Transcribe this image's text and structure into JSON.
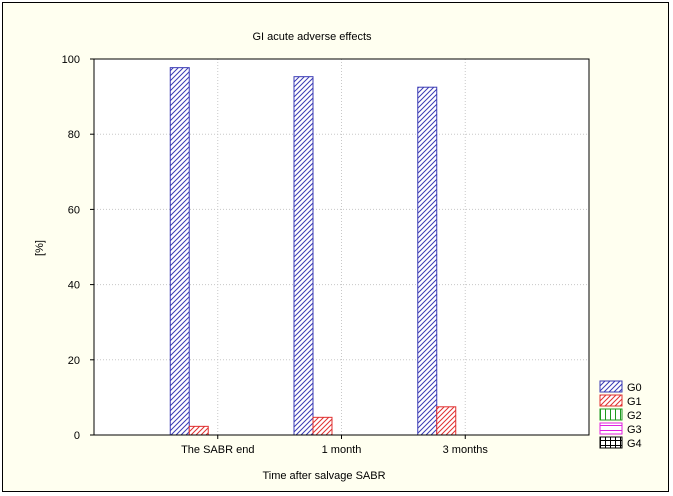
{
  "chart_data": {
    "type": "bar",
    "title": "GI acute adverse effects",
    "xlabel": "Time after salvage SABR",
    "ylabel": "[%]",
    "categories": [
      "The SABR end",
      "1 month",
      "3 months"
    ],
    "ylim": [
      0,
      100
    ],
    "yticks": [
      "0",
      "20",
      "40",
      "60",
      "80",
      "100"
    ],
    "grid": true,
    "legend_position": "bottom-right",
    "series": [
      {
        "name": "G0",
        "values": [
          97.7,
          95.3,
          92.5
        ],
        "color": "#3b3bb5",
        "pattern": "diagonal"
      },
      {
        "name": "G1",
        "values": [
          2.3,
          4.7,
          7.5
        ],
        "color": "#e03030",
        "pattern": "diagonal"
      },
      {
        "name": "G2",
        "values": [
          0,
          0,
          0
        ],
        "color": "#1f9a1f",
        "pattern": "vertical"
      },
      {
        "name": "G3",
        "values": [
          0,
          0,
          0
        ],
        "color": "#e020e0",
        "pattern": "horizontal"
      },
      {
        "name": "G4",
        "values": [
          0,
          0,
          0
        ],
        "color": "#000000",
        "pattern": "grid"
      }
    ]
  }
}
